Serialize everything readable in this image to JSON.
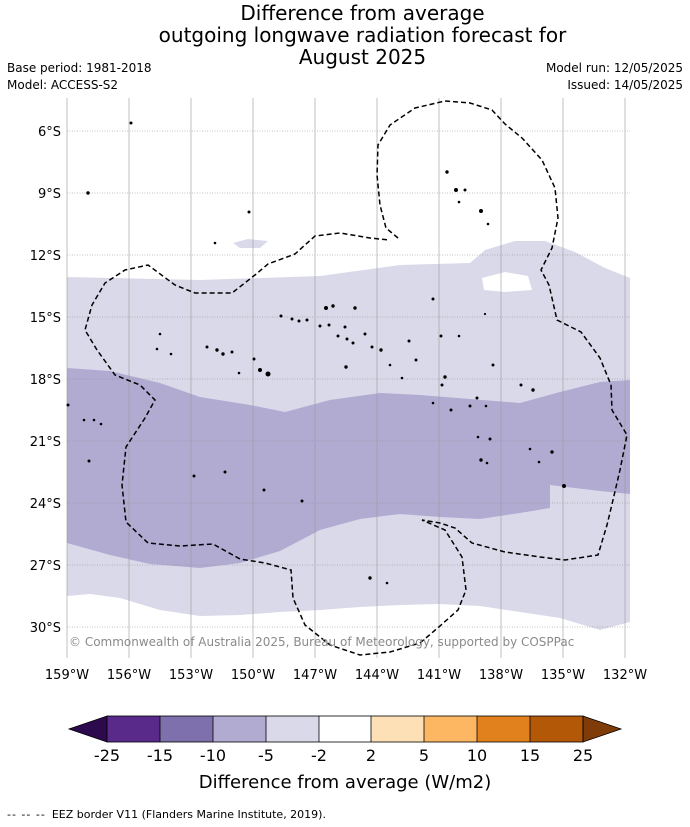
{
  "title": {
    "line1": "Difference from average",
    "line2": "outgoing longwave radiation forecast for",
    "line3": "August 2025"
  },
  "meta": {
    "base_period": "Base period: 1981-2018",
    "model": "Model: ACCESS-S2",
    "model_run": "Model run: 12/05/2025",
    "issued": "Issued: 14/05/2025"
  },
  "map": {
    "lat_labels": [
      "6°S",
      "9°S",
      "12°S",
      "15°S",
      "18°S",
      "21°S",
      "24°S",
      "27°S",
      "30°S"
    ],
    "lon_labels": [
      "159°W",
      "156°W",
      "153°W",
      "150°W",
      "147°W",
      "144°W",
      "141°W",
      "138°W",
      "135°W",
      "132°W"
    ],
    "copyright": "© Commonwealth of Australia 2025, Bureau of Meteorology, supported by COSPPac",
    "anomaly_colors": {
      "neg_5_to_neg_2": "#d9d9e9",
      "neg_10_to_neg_5": "#b1abd2"
    }
  },
  "colorbar": {
    "ticks": [
      "-25",
      "-15",
      "-10",
      "-5",
      "-2",
      "2",
      "5",
      "10",
      "15",
      "25"
    ],
    "colors": [
      "#5a2a8a",
      "#7e70ad",
      "#b1abd2",
      "#d9d9e9",
      "#ffffff",
      "#fde0b6",
      "#fdb762",
      "#e1811d",
      "#b35807"
    ],
    "under_color": "#2d0a4e",
    "over_color": "#7f3b08",
    "label": "Difference from average (W/m2)"
  },
  "footer": {
    "legend_marker": "-- -- --",
    "legend_text": "EEZ border V11 (Flanders Marine Institute, 2019)."
  }
}
